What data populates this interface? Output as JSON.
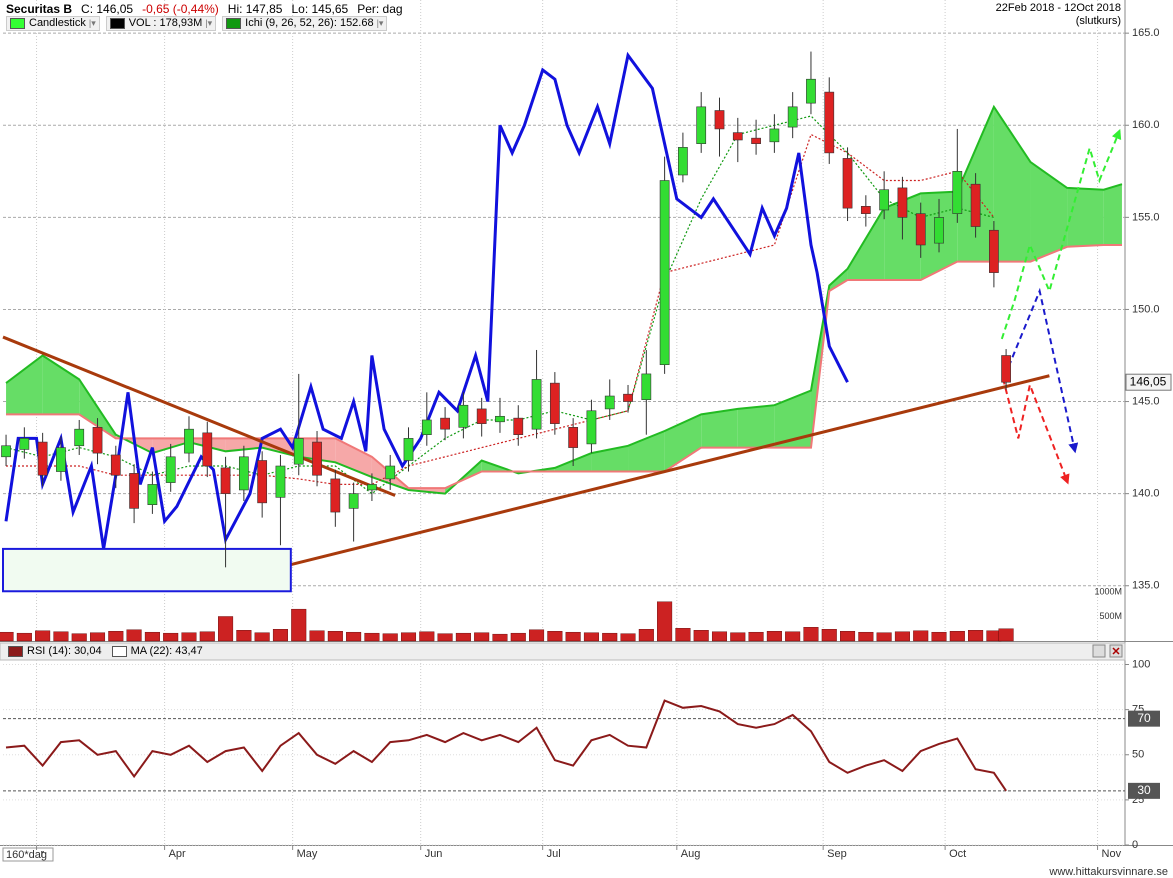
{
  "chart_data": [
    {
      "type": "candlestick",
      "title": "Securitas B",
      "stats": [
        {
          "text": "C: 146,05",
          "color": "#000000"
        },
        {
          "text": "-0,65 (-0,44%)",
          "color": "#cc0000"
        },
        {
          "text": "Hi: 147,85",
          "color": "#000000"
        },
        {
          "text": "Lo: 145,65",
          "color": "#000000"
        },
        {
          "text": "Per: dag",
          "color": "#000000"
        }
      ],
      "date_range": "22Feb 2018 - 12Oct 2018",
      "price_basis": "(slutkurs)",
      "legend": [
        {
          "name": "Candlestick",
          "color": "#33ff33"
        },
        {
          "name": "VOL : 178,93M",
          "color": "#000000"
        },
        {
          "name": "Ichi (9, 26, 52, 26): 152.68",
          "color": "#119911"
        }
      ],
      "up_color": "#33dd33",
      "down_color": "#dd2222",
      "x": [
        0,
        3,
        6,
        9,
        12,
        15,
        18,
        21,
        24,
        27,
        30,
        33,
        36,
        39,
        42,
        45,
        48,
        51,
        54,
        57,
        60,
        63,
        66,
        69,
        72,
        75,
        78,
        81,
        84,
        87,
        90,
        93,
        96,
        99,
        102,
        105,
        108,
        111,
        114,
        117,
        120,
        123,
        126,
        129,
        132,
        135,
        138,
        141,
        144,
        147,
        150,
        153,
        156,
        159,
        162,
        164
      ],
      "open": [
        142.0,
        142.4,
        142.8,
        141.2,
        142.6,
        143.6,
        142.1,
        141.1,
        139.4,
        140.6,
        142.2,
        143.3,
        141.4,
        140.2,
        141.8,
        139.8,
        141.6,
        142.8,
        140.8,
        139.2,
        140.2,
        140.8,
        141.8,
        143.2,
        144.1,
        143.6,
        144.6,
        143.9,
        144.1,
        143.5,
        146.0,
        143.6,
        142.7,
        144.6,
        145.4,
        145.1,
        147.0,
        157.3,
        159.0,
        160.8,
        159.6,
        159.3,
        159.1,
        159.9,
        161.2,
        161.8,
        158.2,
        155.6,
        155.4,
        156.6,
        155.2,
        153.6,
        155.2,
        156.8,
        154.3,
        147.5
      ],
      "high": [
        143.2,
        143.6,
        143.3,
        143.1,
        144.0,
        144.1,
        142.6,
        141.6,
        141.2,
        142.7,
        144.2,
        143.9,
        142.0,
        142.6,
        142.3,
        142.1,
        146.5,
        143.4,
        141.3,
        140.6,
        141.1,
        142.1,
        143.6,
        145.5,
        144.7,
        145.5,
        145.2,
        145.2,
        144.8,
        147.8,
        146.6,
        144.1,
        145.1,
        146.2,
        145.9,
        147.8,
        158.3,
        159.6,
        161.8,
        161.5,
        160.4,
        160.3,
        160.6,
        161.8,
        164.0,
        162.6,
        158.8,
        156.2,
        157.5,
        157.2,
        155.8,
        156.0,
        159.8,
        157.4,
        154.8,
        147.85
      ],
      "low": [
        141.5,
        141.9,
        140.4,
        140.7,
        142.1,
        141.6,
        140.3,
        138.4,
        138.9,
        140.1,
        141.7,
        140.9,
        136.0,
        139.6,
        138.7,
        137.2,
        141.0,
        140.4,
        138.2,
        137.4,
        139.6,
        140.2,
        141.2,
        142.6,
        142.9,
        143.0,
        143.1,
        143.3,
        142.6,
        143.0,
        143.2,
        141.5,
        142.2,
        144.0,
        144.4,
        143.2,
        146.5,
        156.9,
        158.5,
        158.3,
        158.0,
        158.4,
        158.5,
        159.3,
        160.6,
        157.9,
        154.8,
        154.5,
        154.9,
        153.8,
        152.8,
        153.1,
        154.7,
        153.9,
        151.2,
        145.65
      ],
      "close": [
        142.6,
        143.0,
        141.0,
        142.5,
        143.5,
        142.2,
        141.0,
        139.2,
        140.5,
        142.0,
        143.5,
        141.5,
        140.0,
        142.0,
        139.5,
        141.5,
        143.0,
        141.0,
        139.0,
        140.0,
        140.5,
        141.5,
        143.0,
        144.0,
        143.5,
        144.8,
        143.8,
        144.2,
        143.2,
        146.2,
        143.8,
        142.5,
        144.5,
        145.3,
        145.0,
        146.5,
        157.0,
        158.8,
        161.0,
        159.8,
        159.2,
        159.0,
        159.8,
        161.0,
        162.5,
        158.5,
        155.5,
        155.2,
        156.5,
        155.0,
        153.5,
        155.0,
        157.5,
        154.5,
        152.0,
        146.05
      ],
      "last_label": "146,05",
      "ylim": [
        132,
        166.8
      ],
      "yticks": [
        {
          "value": 135,
          "label": "135.0"
        },
        {
          "value": 140,
          "label": "140.0"
        },
        {
          "value": 145,
          "label": "145.0"
        },
        {
          "value": 150,
          "label": "150.0"
        },
        {
          "value": 155,
          "label": "155.0"
        },
        {
          "value": 160,
          "label": "160.0"
        },
        {
          "value": 165,
          "label": "165.0"
        }
      ],
      "grid": true,
      "volume": {
        "color": "#cc2222",
        "values": [
          180,
          160,
          210,
          190,
          150,
          170,
          200,
          230,
          180,
          160,
          170,
          190,
          500,
          220,
          170,
          240,
          650,
          210,
          200,
          180,
          160,
          150,
          170,
          190,
          150,
          160,
          170,
          140,
          160,
          230,
          200,
          180,
          170,
          160,
          150,
          240,
          800,
          260,
          220,
          190,
          170,
          180,
          200,
          190,
          280,
          240,
          200,
          180,
          170,
          190,
          210,
          180,
          200,
          220,
          210,
          250
        ],
        "ylim": [
          0,
          13080
        ],
        "yticks": [
          {
            "value": 500,
            "label": "500M"
          },
          {
            "value": 1000,
            "label": "1000M"
          }
        ]
      },
      "ichimoku": {
        "cloud_up_color": "#66dd66",
        "cloud_down_color": "#f6a8a8",
        "senkou_a": {
          "color": "#22bb22",
          "x": [
            0,
            6,
            12,
            18,
            24,
            30,
            36,
            42,
            48,
            54,
            60,
            66,
            72,
            78,
            84,
            90,
            96,
            102,
            108,
            114,
            120,
            126,
            132,
            135,
            138,
            144,
            150,
            156,
            162,
            168,
            174,
            180,
            183
          ],
          "values": [
            146.0,
            147.5,
            146.2,
            143.2,
            142.2,
            142.8,
            142.3,
            142.5,
            142.0,
            141.7,
            140.9,
            140.2,
            140.0,
            141.8,
            141.1,
            141.4,
            142.2,
            142.6,
            143.4,
            144.3,
            144.6,
            144.8,
            145.6,
            151.3,
            152.2,
            155.5,
            156.3,
            156.4,
            161.0,
            158.0,
            156.6,
            156.5,
            156.8
          ]
        },
        "senkou_b": {
          "color": "#f07878",
          "x": [
            0,
            6,
            12,
            18,
            24,
            30,
            36,
            42,
            48,
            54,
            60,
            66,
            72,
            78,
            84,
            90,
            96,
            102,
            108,
            114,
            120,
            126,
            132,
            135,
            138,
            144,
            150,
            156,
            162,
            168,
            174,
            180,
            183
          ],
          "values": [
            144.3,
            144.3,
            144.3,
            143.0,
            143.0,
            143.0,
            143.0,
            143.0,
            143.0,
            143.0,
            142.0,
            140.3,
            140.3,
            141.2,
            141.2,
            141.2,
            141.2,
            141.2,
            141.2,
            142.5,
            142.5,
            142.5,
            142.5,
            151.0,
            151.6,
            151.6,
            151.6,
            152.6,
            152.6,
            152.6,
            153.4,
            153.5,
            153.5
          ]
        },
        "tenkan": {
          "color": "#119911",
          "x": [
            0,
            6,
            12,
            18,
            24,
            30,
            36,
            42,
            48,
            54,
            60,
            66,
            72,
            78,
            84,
            90,
            96,
            102,
            108,
            114,
            120,
            126,
            132,
            138,
            144,
            150,
            156,
            162
          ],
          "values": [
            142.5,
            142,
            142.5,
            142,
            141,
            141.5,
            141.5,
            141,
            141.5,
            141.5,
            140,
            141.5,
            143,
            144,
            144,
            144.5,
            144,
            144.5,
            151.5,
            156,
            159.5,
            160,
            160.5,
            158.5,
            156,
            155,
            155.5,
            155
          ]
        },
        "kijun": {
          "color": "#cc2222",
          "x": [
            0,
            6,
            12,
            18,
            24,
            30,
            36,
            42,
            48,
            54,
            60,
            66,
            72,
            78,
            84,
            90,
            96,
            102,
            108,
            114,
            120,
            126,
            132,
            138,
            144,
            150,
            156,
            162
          ],
          "values": [
            141.5,
            141.5,
            141.5,
            141,
            141,
            141,
            141,
            141,
            140.8,
            140.5,
            140.5,
            141.5,
            142,
            142.5,
            143,
            143.5,
            144,
            144.5,
            152,
            152.5,
            153,
            153.5,
            159.5,
            158.5,
            157,
            157,
            157.5,
            155
          ]
        },
        "chikou": {
          "color": "#1111dd",
          "x": [
            0,
            2,
            5,
            6,
            9,
            11,
            14,
            16,
            18,
            20,
            22,
            24,
            26,
            28,
            32,
            34,
            36,
            40,
            42,
            45,
            47,
            50,
            52,
            55,
            57,
            59,
            60,
            62,
            65,
            68,
            71,
            74,
            77,
            79,
            81,
            83,
            85,
            88,
            90,
            92,
            94,
            97,
            99,
            102,
            106,
            108,
            110,
            114,
            116,
            120,
            122,
            124,
            126,
            128,
            130,
            132,
            133,
            135,
            138
          ],
          "values": [
            138.5,
            143,
            143,
            140.5,
            143,
            139,
            141.5,
            137,
            141,
            145.5,
            140.5,
            142.5,
            138.5,
            139.3,
            142,
            141.3,
            137.5,
            140,
            143,
            143.5,
            142.5,
            145.8,
            143.5,
            143,
            145,
            142.3,
            147.5,
            143.5,
            141.5,
            143,
            145.5,
            144.5,
            147.5,
            145,
            160,
            158.5,
            160,
            163,
            162.5,
            160,
            158.5,
            161,
            159,
            163.8,
            162,
            159,
            156,
            155,
            156,
            154,
            153,
            155.5,
            154,
            155.5,
            158.5,
            153.5,
            152,
            148,
            146.05
          ]
        }
      },
      "annotations": [
        {
          "shape": "line",
          "color": "#a83a0c",
          "dashed": false,
          "x": [
            -0.5,
            63.8
          ],
          "y": [
            148.5,
            139.9
          ]
        },
        {
          "shape": "line",
          "color": "#a83a0c",
          "dashed": false,
          "x": [
            41.3,
            171.1
          ],
          "y": [
            135.7,
            146.4
          ]
        },
        {
          "shape": "rect",
          "color": "#1a1add",
          "fill": "#f1fbf1",
          "dashed": false,
          "x": [
            -0.5,
            46.7
          ],
          "y": [
            134.7,
            137.0
          ]
        },
        {
          "shape": "arrow",
          "color": "#33ee33",
          "dashed": true,
          "x": [
            163.3,
            165.4,
            167.9,
            171.1,
            177.7,
            179.3,
            182.6
          ],
          "y": [
            148.4,
            150.5,
            153.5,
            151.0,
            158.75,
            157.0,
            159.7
          ]
        },
        {
          "shape": "arrow",
          "color": "#1a1acc",
          "dashed": true,
          "x": [
            163.8,
            169.5,
            175.3
          ],
          "y": [
            146.4,
            151.0,
            142.3
          ]
        },
        {
          "shape": "arrow",
          "color": "#ee2222",
          "dashed": true,
          "x": [
            163.5,
            166.0,
            167.9,
            174.1
          ],
          "y": [
            146.25,
            143.0,
            145.9,
            140.6
          ]
        }
      ]
    },
    {
      "type": "line",
      "series": [
        {
          "name": "RSI (14): 30,04",
          "color": "#8b1a1a",
          "values": [
            54,
            55,
            44,
            57,
            58,
            50,
            52,
            38,
            52,
            50,
            55,
            46,
            52,
            54,
            41,
            55,
            62,
            50,
            45,
            52,
            46,
            57,
            58,
            61,
            57,
            62,
            58,
            61,
            57,
            65,
            47,
            44,
            58,
            61,
            55,
            54,
            80,
            76,
            77,
            74,
            67,
            65,
            67,
            72,
            63,
            46,
            40,
            44,
            47,
            41,
            52,
            56,
            59,
            42,
            40,
            30.04
          ]
        }
      ],
      "ma_legend": {
        "name": "MA (22): 43,47",
        "color": "#ffffff"
      },
      "x": [
        0,
        3,
        6,
        9,
        12,
        15,
        18,
        21,
        24,
        27,
        30,
        33,
        36,
        39,
        42,
        45,
        48,
        51,
        54,
        57,
        60,
        63,
        66,
        69,
        72,
        75,
        78,
        81,
        84,
        87,
        90,
        93,
        96,
        99,
        102,
        105,
        108,
        111,
        114,
        117,
        120,
        123,
        126,
        129,
        132,
        135,
        138,
        141,
        144,
        147,
        150,
        153,
        156,
        159,
        162,
        164
      ],
      "xlim": [
        -0.5,
        183.5
      ],
      "xticks": [
        {
          "value": 5,
          "label": "r"
        },
        {
          "value": 26,
          "label": "Apr"
        },
        {
          "value": 47,
          "label": "May"
        },
        {
          "value": 68,
          "label": "Jun"
        },
        {
          "value": 88,
          "label": "Jul"
        },
        {
          "value": 110,
          "label": "Aug"
        },
        {
          "value": 134,
          "label": "Sep"
        },
        {
          "value": 154,
          "label": "Oct"
        },
        {
          "value": 179,
          "label": "Nov"
        }
      ],
      "ylim": [
        0,
        102.5
      ],
      "yticks": [
        0,
        25,
        50,
        75,
        100
      ],
      "levels": [
        70,
        30
      ],
      "period_label": "160*dag",
      "source": "www.hittakursvinnare.se"
    }
  ]
}
